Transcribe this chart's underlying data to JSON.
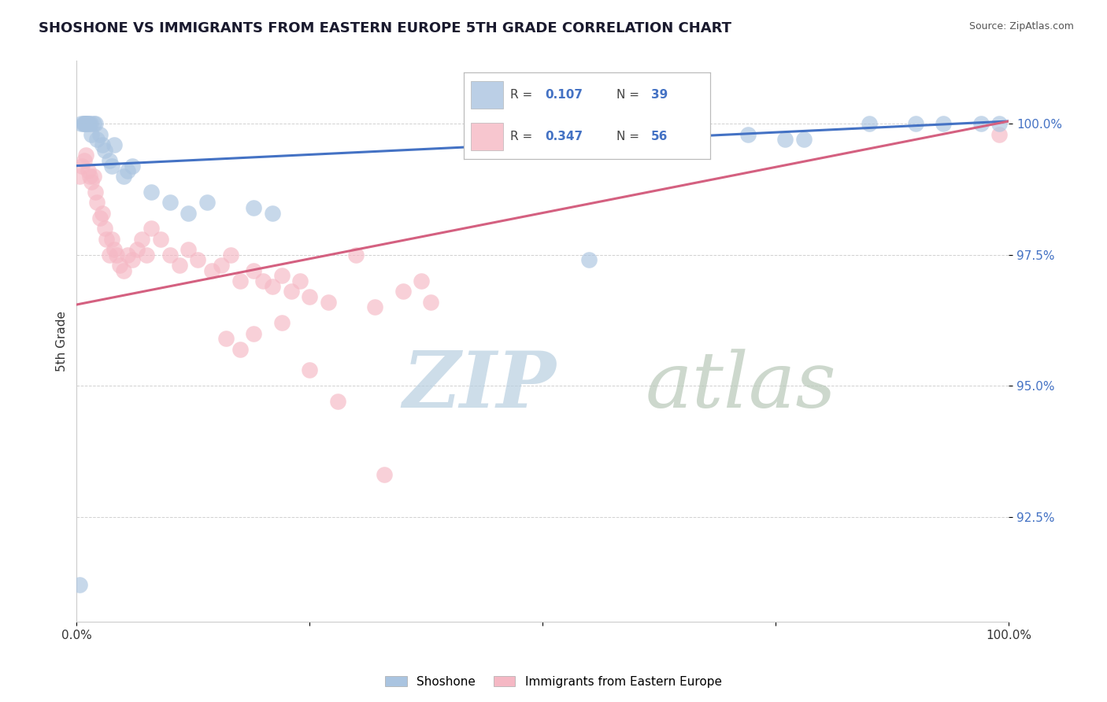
{
  "title": "SHOSHONE VS IMMIGRANTS FROM EASTERN EUROPE 5TH GRADE CORRELATION CHART",
  "source": "Source: ZipAtlas.com",
  "ylabel": "5th Grade",
  "xlim": [
    0.0,
    1.0
  ],
  "ylim": [
    90.5,
    101.2
  ],
  "yticks": [
    92.5,
    95.0,
    97.5,
    100.0
  ],
  "ytick_labels": [
    "92.5%",
    "95.0%",
    "97.5%",
    "100.0%"
  ],
  "xtick_positions": [
    0.0,
    0.25,
    0.5,
    0.75,
    1.0
  ],
  "xtick_labels": [
    "0.0%",
    "",
    "",
    "",
    "100.0%"
  ],
  "blue_R": 0.107,
  "blue_N": 39,
  "pink_R": 0.347,
  "pink_N": 56,
  "blue_color": "#aac4e0",
  "pink_color": "#f5b8c4",
  "blue_line_color": "#4472c4",
  "pink_line_color": "#d46080",
  "background_color": "#ffffff",
  "grid_color": "#cccccc",
  "watermark_color_zip": "#c5d8ee",
  "watermark_color_atlas": "#c8d4c8",
  "legend_label_blue": "Shoshone",
  "legend_label_pink": "Immigrants from Eastern Europe",
  "blue_line_x0": 0.0,
  "blue_line_x1": 1.0,
  "blue_line_y0": 99.2,
  "blue_line_y1": 100.05,
  "pink_line_x0": 0.0,
  "pink_line_x1": 1.0,
  "pink_line_y0": 96.55,
  "pink_line_y1": 100.05,
  "blue_scatter_x": [
    0.003,
    0.005,
    0.007,
    0.008,
    0.009,
    0.01,
    0.011,
    0.012,
    0.013,
    0.015,
    0.016,
    0.018,
    0.02,
    0.022,
    0.025,
    0.028,
    0.03,
    0.035,
    0.038,
    0.04,
    0.05,
    0.055,
    0.06,
    0.08,
    0.1,
    0.12,
    0.14,
    0.19,
    0.21,
    0.55,
    0.65,
    0.72,
    0.76,
    0.78,
    0.85,
    0.9,
    0.93,
    0.97,
    0.99
  ],
  "blue_scatter_y": [
    91.2,
    100.0,
    100.0,
    100.0,
    100.0,
    100.0,
    100.0,
    100.0,
    100.0,
    100.0,
    99.8,
    100.0,
    100.0,
    99.7,
    99.8,
    99.6,
    99.5,
    99.3,
    99.2,
    99.6,
    99.0,
    99.1,
    99.2,
    98.7,
    98.5,
    98.3,
    98.5,
    98.4,
    98.3,
    97.4,
    99.5,
    99.8,
    99.7,
    99.7,
    100.0,
    100.0,
    100.0,
    100.0,
    100.0
  ],
  "pink_scatter_x": [
    0.003,
    0.006,
    0.008,
    0.01,
    0.012,
    0.014,
    0.016,
    0.018,
    0.02,
    0.022,
    0.025,
    0.028,
    0.03,
    0.032,
    0.035,
    0.038,
    0.04,
    0.043,
    0.046,
    0.05,
    0.055,
    0.06,
    0.065,
    0.07,
    0.075,
    0.08,
    0.09,
    0.1,
    0.11,
    0.12,
    0.13,
    0.145,
    0.155,
    0.165,
    0.175,
    0.19,
    0.2,
    0.21,
    0.22,
    0.23,
    0.24,
    0.25,
    0.27,
    0.3,
    0.32,
    0.35,
    0.37,
    0.38,
    0.19,
    0.22,
    0.16,
    0.175,
    0.25,
    0.28,
    0.33,
    0.99
  ],
  "pink_scatter_y": [
    99.0,
    99.2,
    99.3,
    99.4,
    99.1,
    99.0,
    98.9,
    99.0,
    98.7,
    98.5,
    98.2,
    98.3,
    98.0,
    97.8,
    97.5,
    97.8,
    97.6,
    97.5,
    97.3,
    97.2,
    97.5,
    97.4,
    97.6,
    97.8,
    97.5,
    98.0,
    97.8,
    97.5,
    97.3,
    97.6,
    97.4,
    97.2,
    97.3,
    97.5,
    97.0,
    97.2,
    97.0,
    96.9,
    97.1,
    96.8,
    97.0,
    96.7,
    96.6,
    97.5,
    96.5,
    96.8,
    97.0,
    96.6,
    96.0,
    96.2,
    95.9,
    95.7,
    95.3,
    94.7,
    93.3,
    99.8
  ]
}
